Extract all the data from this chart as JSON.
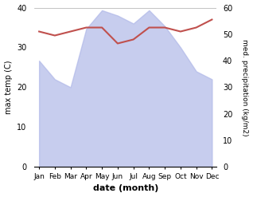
{
  "months": [
    "Jan",
    "Feb",
    "Mar",
    "Apr",
    "May",
    "Jun",
    "Jul",
    "Aug",
    "Sep",
    "Oct",
    "Nov",
    "Dec"
  ],
  "precipitation": [
    40,
    33,
    30,
    52,
    59,
    57,
    54,
    59,
    53,
    45,
    36,
    33
  ],
  "temperature": [
    34.0,
    33.0,
    34.0,
    35.0,
    35.0,
    31.0,
    32.0,
    35.0,
    35.0,
    34.0,
    35.0,
    37.0
  ],
  "precip_color": "#b0b8e8",
  "temp_color": "#c0504d",
  "ylabel_left": "max temp (C)",
  "ylabel_right": "med. precipitation (kg/m2)",
  "xlabel": "date (month)",
  "ylim_left": [
    0,
    40
  ],
  "ylim_right": [
    0,
    60
  ],
  "bg_color": "#ffffff",
  "grid_color": "#cccccc"
}
